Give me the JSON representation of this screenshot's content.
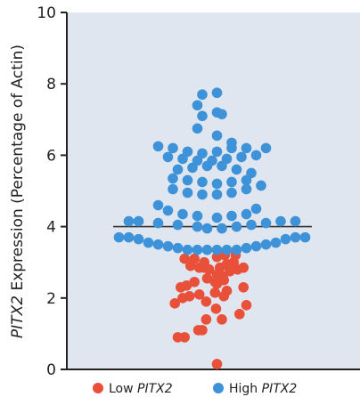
{
  "chart_data": {
    "type": "scatter",
    "title": "",
    "ylabel_italic": "PITX2",
    "ylabel_rest": " Expression (Percentage of Actin)",
    "ylim": [
      0,
      10
    ],
    "yticks": [
      "0",
      "2",
      "4",
      "6",
      "8",
      "10"
    ],
    "grid": false,
    "legend_position": "bottom",
    "background_color": "#dfe6f0",
    "reference_line": {
      "y": 4.0,
      "color": "#333333"
    },
    "legend": [
      {
        "label_plain": "Low ",
        "label_italic": "PITX2",
        "color": "#e8503a"
      },
      {
        "label_plain": "High ",
        "label_italic": "PITX2",
        "color": "#3d92d8"
      }
    ],
    "series": [
      {
        "name": "Low PITX2",
        "color": "#e8503a",
        "x": [
          0.5,
          -3.5,
          -2.8,
          -1.0,
          1.0,
          2.8,
          3.5,
          -3.8,
          -3.0,
          -2.3,
          -1.3,
          1.5,
          3.2,
          -3.2,
          -2.6,
          -1.8,
          -0.5,
          0.5,
          1.8,
          2.6,
          3.2,
          -2.2,
          -1.3,
          -0.8,
          -0.3,
          0.8,
          1.5,
          2.2,
          -2.8,
          -1.8,
          -0.8,
          0.5,
          1.3,
          2.4,
          -1.4,
          -0.6,
          0.4,
          1.2,
          0.5,
          1.1,
          -0.6,
          0.3,
          1.2,
          0.3
        ],
        "y": [
          0.15,
          0.9,
          0.9,
          1.1,
          1.4,
          1.55,
          1.8,
          1.85,
          2.0,
          2.05,
          2.1,
          2.2,
          2.3,
          2.3,
          2.35,
          2.45,
          2.55,
          2.65,
          2.75,
          2.8,
          2.85,
          2.9,
          2.85,
          2.85,
          2.8,
          2.85,
          2.95,
          3.0,
          3.1,
          3.1,
          3.0,
          3.15,
          3.2,
          3.2,
          1.1,
          1.4,
          1.7,
          2.05,
          2.4,
          2.6,
          1.9,
          2.15,
          2.5,
          2.45
        ]
      },
      {
        "name": "High PITX2",
        "color": "#3d92d8",
        "x": [
          -9.5,
          -8.5,
          -7.5,
          -6.5,
          -5.5,
          -4.5,
          -3.5,
          -2.5,
          -1.5,
          -0.5,
          0.5,
          1.5,
          2.5,
          3.5,
          4.5,
          5.5,
          6.5,
          7.5,
          8.5,
          9.5,
          -8.5,
          -7.5,
          -5.5,
          -3.5,
          -1.5,
          -0.5,
          1.0,
          2.5,
          4.0,
          5.5,
          7.0,
          8.5,
          -5.5,
          -4.5,
          -3.0,
          -1.5,
          0.5,
          2.0,
          3.5,
          4.5,
          -4.0,
          -2.5,
          -1.0,
          0.5,
          2.0,
          3.5,
          -4.0,
          -2.5,
          -1.0,
          0.5,
          2.0,
          3.5,
          5.0,
          -3.5,
          -2.0,
          -0.5,
          1.0,
          2.5,
          4.0,
          -4.5,
          -3.0,
          -1.5,
          0.0,
          1.5,
          3.0,
          4.5,
          -5.5,
          -4.0,
          -2.5,
          -1.0,
          0.5,
          2.0,
          3.5,
          5.5,
          -1.0,
          1.0,
          -1.5,
          0.5,
          2.0,
          -1.5,
          0.5,
          -1.0,
          0.5
        ],
        "y": [
          3.7,
          3.7,
          3.65,
          3.55,
          3.5,
          3.45,
          3.4,
          3.35,
          3.35,
          3.35,
          3.35,
          3.35,
          3.35,
          3.4,
          3.45,
          3.5,
          3.55,
          3.65,
          3.7,
          3.7,
          4.15,
          4.15,
          4.1,
          4.05,
          4.0,
          3.95,
          3.95,
          4.0,
          4.05,
          4.1,
          4.15,
          4.15,
          4.6,
          4.45,
          4.35,
          4.3,
          4.25,
          4.3,
          4.35,
          4.5,
          5.05,
          4.95,
          4.9,
          4.9,
          4.95,
          5.05,
          5.35,
          5.3,
          5.25,
          5.2,
          5.25,
          5.3,
          5.15,
          5.6,
          5.65,
          5.7,
          5.7,
          5.6,
          5.5,
          5.95,
          5.9,
          5.85,
          5.85,
          5.9,
          5.95,
          6.0,
          6.25,
          6.2,
          6.1,
          6.05,
          6.1,
          6.2,
          6.2,
          6.2,
          7.1,
          7.15,
          6.75,
          6.55,
          6.35,
          7.4,
          7.2,
          7.7,
          7.75
        ]
      }
    ]
  }
}
